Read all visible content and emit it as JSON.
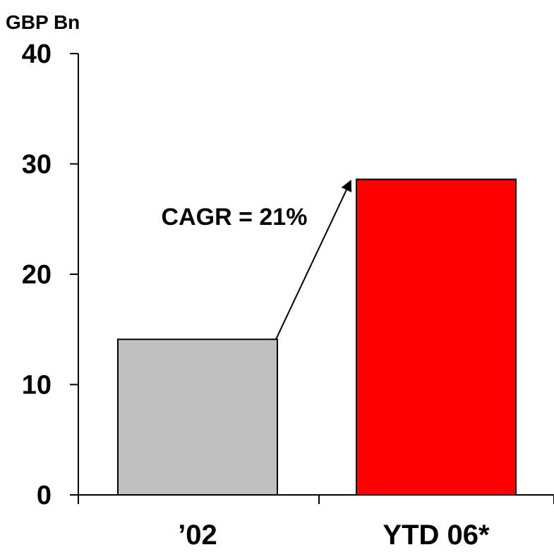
{
  "chart_data": {
    "type": "bar",
    "unit_label": "GBP Bn",
    "categories": [
      "’02",
      "YTD 06*"
    ],
    "values": [
      14.1,
      28.6
    ],
    "ylim": [
      0,
      40
    ],
    "yticks": [
      0,
      10,
      20,
      30,
      40
    ],
    "grid": false,
    "colors": [
      "#C0C0C0",
      "#FF0000"
    ],
    "annotation": {
      "text": "CAGR = 21%",
      "from": "’02",
      "to": "YTD 06*"
    }
  }
}
